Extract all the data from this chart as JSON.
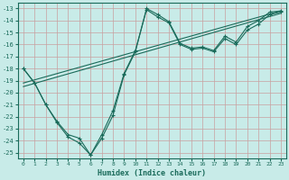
{
  "xlabel": "Humidex (Indice chaleur)",
  "background_color": "#c8ebe8",
  "grid_color": "#d4a0a0",
  "line_color": "#1a6b5a",
  "xlim": [
    -0.5,
    23.5
  ],
  "ylim": [
    -25.5,
    -12.5
  ],
  "xticks": [
    0,
    1,
    2,
    3,
    4,
    5,
    6,
    7,
    8,
    9,
    10,
    11,
    12,
    13,
    14,
    15,
    16,
    17,
    18,
    19,
    20,
    21,
    22,
    23
  ],
  "yticks": [
    -13,
    -14,
    -15,
    -16,
    -17,
    -18,
    -19,
    -20,
    -21,
    -22,
    -23,
    -24,
    -25
  ],
  "series": [
    {
      "x": [
        0,
        1,
        2,
        3,
        4,
        5,
        6,
        7,
        8,
        9,
        10,
        11,
        12,
        13,
        14,
        15,
        16,
        17,
        18,
        19,
        20,
        21,
        22,
        23
      ],
      "y": [
        -18.0,
        -19.2,
        -21.0,
        -22.4,
        -23.5,
        -23.8,
        -25.2,
        -23.8,
        -21.9,
        -18.5,
        -16.6,
        -13.0,
        -13.5,
        -14.1,
        -15.9,
        -16.3,
        -16.2,
        -16.5,
        -15.3,
        -15.8,
        -14.5,
        -14.0,
        -13.3,
        -13.2
      ]
    },
    {
      "x": [
        0,
        1,
        2,
        3,
        4,
        5,
        6,
        7,
        8,
        9,
        10,
        11,
        12,
        13,
        14,
        15,
        16,
        17,
        18,
        19,
        20,
        21,
        22,
        23
      ],
      "y": [
        -18.0,
        -19.2,
        -21.0,
        -22.5,
        -23.7,
        -24.2,
        -25.2,
        -23.5,
        -21.5,
        -18.4,
        -16.5,
        -13.1,
        -13.7,
        -14.2,
        -16.0,
        -16.4,
        -16.3,
        -16.6,
        -15.5,
        -16.0,
        -14.8,
        -14.3,
        -13.5,
        -13.3
      ]
    },
    {
      "x": [
        0,
        23
      ],
      "y": [
        -19.2,
        -13.2
      ]
    },
    {
      "x": [
        0,
        23
      ],
      "y": [
        -19.5,
        -13.4
      ]
    }
  ]
}
